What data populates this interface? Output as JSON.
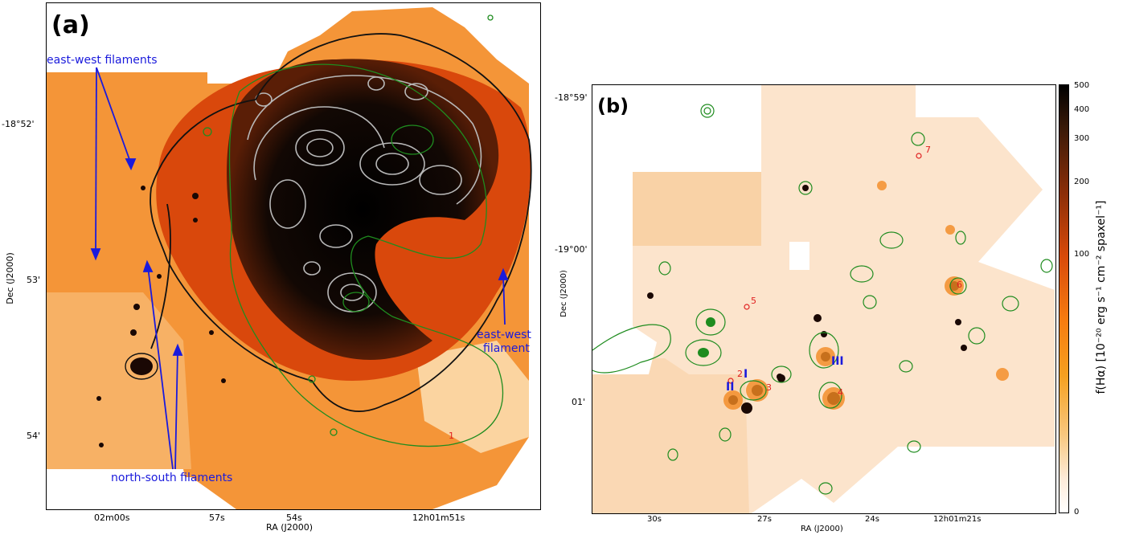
{
  "panel_a": {
    "label": "(a)",
    "dec_ticks": [
      "-18°52'",
      "53'",
      "54'"
    ],
    "ra_ticks": [
      "02m00s",
      "57s",
      "54s",
      "12h01m51s"
    ],
    "xlabel": "RA (J2000)",
    "ylabel": "Dec (J2000)",
    "annotations": {
      "ew_filaments": "east-west filaments",
      "ew_filament_line1": "east-west",
      "ew_filament_line2": "filament",
      "ns_filaments": "north-south filaments",
      "marker_1": "1"
    }
  },
  "panel_b": {
    "label": "(b)",
    "dec_ticks": [
      "-18°59'",
      "-19°00'",
      "01'"
    ],
    "ra_ticks": [
      "30s",
      "27s",
      "24s",
      "12h01m21s"
    ],
    "xlabel": "RA (J2000)",
    "ylabel": "Dec (J2000)",
    "red_markers": [
      "2",
      "3",
      "4",
      "5",
      "6",
      "7"
    ],
    "blue_markers": [
      "I",
      "II",
      "III"
    ]
  },
  "colorbar": {
    "label": "f(Hα) [10⁻²⁰ erg s⁻¹ cm⁻² spaxel⁻¹]",
    "ticks": [
      "500",
      "400",
      "300",
      "200",
      "100",
      "0"
    ],
    "colors": [
      "#000000",
      "#3a1a08",
      "#8a2e08",
      "#d84a0a",
      "#f77c10",
      "#f5a020",
      "#f8c880",
      "#fdebd8",
      "#ffffff"
    ]
  }
}
